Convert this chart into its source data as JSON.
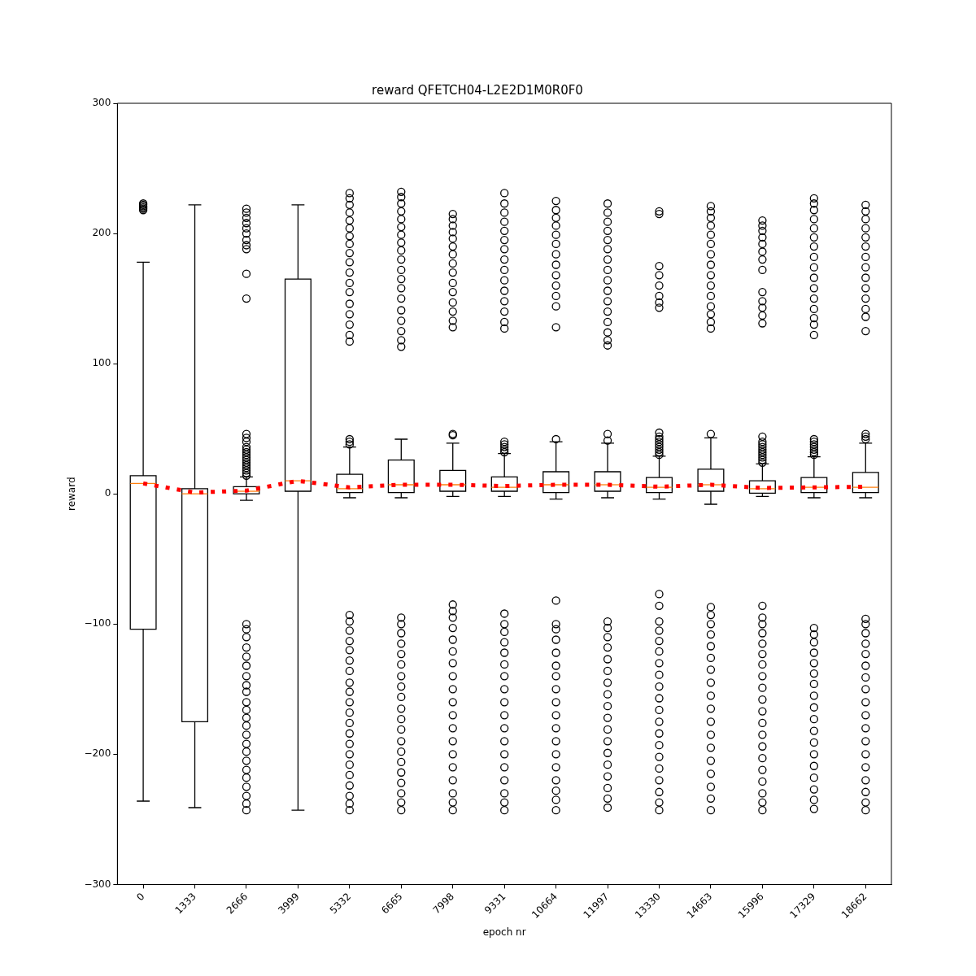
{
  "chart_data": {
    "type": "box",
    "title": "reward QFETCH04-L2E2D1M0R0F0",
    "xlabel": "epoch nr",
    "ylabel": "reward",
    "color": "#000000",
    "categories": [
      "0",
      "1333",
      "2666",
      "3999",
      "5332",
      "6665",
      "7998",
      "9331",
      "10664",
      "11997",
      "13330",
      "14663",
      "15996",
      "17329",
      "18662"
    ],
    "ylim": [
      -300,
      300
    ],
    "yticks": [
      {
        "value": -300,
        "label": "−300"
      },
      {
        "value": -200,
        "label": "−200"
      },
      {
        "value": -100,
        "label": "−100"
      },
      0,
      100,
      200,
      300
    ],
    "grid": false,
    "boxes": [
      {
        "low": -236,
        "q1": -104,
        "median": 8,
        "q3": 14,
        "high": 178,
        "outliers": [
          218,
          219,
          220,
          221,
          222,
          223
        ]
      },
      {
        "low": -241,
        "q1": -175,
        "median": 0,
        "q3": 4,
        "high": 222
      },
      {
        "low": -5,
        "q1": 0,
        "median": 2,
        "q3": 5.5,
        "high": 13,
        "outliers": [
          14,
          16,
          18,
          20,
          22,
          24,
          26,
          28,
          30,
          32,
          34,
          36,
          40,
          43,
          46,
          150,
          169,
          188,
          191,
          195,
          200,
          204,
          208,
          212,
          216,
          219,
          -100,
          -104,
          -110,
          -118,
          -125,
          -132,
          -140,
          -147,
          -152,
          -160,
          -166,
          -172,
          -178,
          -185,
          -192,
          -198,
          -205,
          -212,
          -218,
          -225,
          -232,
          -238,
          -243
        ]
      },
      {
        "low": -243,
        "q1": 2,
        "median": 10,
        "q3": 165,
        "high": 222
      },
      {
        "low": -3,
        "q1": 1,
        "median": 4,
        "q3": 15,
        "high": 36,
        "outliers": [
          38,
          40,
          42,
          117,
          122,
          130,
          138,
          146,
          155,
          162,
          170,
          178,
          185,
          192,
          198,
          204,
          210,
          216,
          222,
          227,
          231,
          -93,
          -98,
          -105,
          -113,
          -120,
          -128,
          -136,
          -145,
          -152,
          -160,
          -168,
          -176,
          -184,
          -192,
          -200,
          -208,
          -216,
          -224,
          -232,
          -238,
          -243
        ]
      },
      {
        "low": -3,
        "q1": 1,
        "median": 7,
        "q3": 26,
        "high": 42,
        "outliers": [
          113,
          118,
          125,
          133,
          141,
          150,
          158,
          165,
          172,
          180,
          187,
          193,
          199,
          205,
          211,
          217,
          223,
          228,
          232,
          -95,
          -100,
          -107,
          -115,
          -123,
          -131,
          -140,
          -148,
          -156,
          -165,
          -173,
          -181,
          -190,
          -198,
          -206,
          -214,
          -222,
          -230,
          -237,
          -243
        ]
      },
      {
        "low": -2,
        "q1": 2,
        "median": 7,
        "q3": 18,
        "high": 39,
        "outliers": [
          45,
          46,
          128,
          133,
          140,
          147,
          155,
          162,
          170,
          177,
          184,
          190,
          196,
          201,
          206,
          211,
          215,
          -85,
          -90,
          -95,
          -103,
          -112,
          -121,
          -130,
          -140,
          -150,
          -160,
          -170,
          -180,
          -190,
          -200,
          -210,
          -220,
          -230,
          -237,
          -243
        ]
      },
      {
        "low": -2,
        "q1": 2,
        "median": 5,
        "q3": 13,
        "high": 31,
        "outliers": [
          32,
          34,
          36,
          38,
          40,
          127,
          132,
          140,
          148,
          156,
          164,
          172,
          180,
          188,
          195,
          202,
          209,
          216,
          223,
          231,
          -92,
          -100,
          -106,
          -114,
          -122,
          -131,
          -140,
          -150,
          -160,
          -170,
          -180,
          -190,
          -200,
          -210,
          -220,
          -230,
          -237,
          -243
        ]
      },
      {
        "low": -4,
        "q1": 1,
        "median": 7,
        "q3": 17,
        "high": 40,
        "outliers": [
          42,
          128,
          144,
          152,
          160,
          168,
          176,
          184,
          192,
          199,
          206,
          212,
          218,
          225,
          -82,
          -100,
          -104,
          -112,
          -122,
          -132,
          -140,
          -150,
          -160,
          -170,
          -180,
          -190,
          -200,
          -210,
          -220,
          -228,
          -235,
          -243
        ]
      },
      {
        "low": -3,
        "q1": 2,
        "median": 7,
        "q3": 17,
        "high": 39,
        "outliers": [
          41,
          46,
          114,
          118,
          124,
          132,
          140,
          148,
          156,
          164,
          172,
          180,
          188,
          195,
          202,
          209,
          216,
          223,
          -98,
          -103,
          -110,
          -118,
          -127,
          -136,
          -145,
          -154,
          -163,
          -172,
          -181,
          -190,
          -199,
          -208,
          -217,
          -226,
          -234,
          -241
        ]
      },
      {
        "low": -4,
        "q1": 1,
        "median": 5,
        "q3": 12.5,
        "high": 29,
        "outliers": [
          30,
          32,
          34,
          36,
          38,
          40,
          42,
          44,
          47,
          143,
          147,
          152,
          160,
          168,
          175,
          215,
          217,
          -77,
          -86,
          -98,
          -105,
          -113,
          -121,
          -130,
          -139,
          -148,
          -157,
          -166,
          -175,
          -184,
          -193,
          -202,
          -211,
          -220,
          -229,
          -237,
          -243
        ]
      },
      {
        "low": -8,
        "q1": 2,
        "median": 7,
        "q3": 19,
        "high": 43,
        "outliers": [
          46,
          127,
          132,
          138,
          144,
          152,
          160,
          168,
          176,
          184,
          192,
          199,
          206,
          212,
          217,
          221,
          -87,
          -93,
          -100,
          -108,
          -117,
          -126,
          -135,
          -145,
          -155,
          -165,
          -175,
          -185,
          -195,
          -205,
          -215,
          -225,
          -234,
          -243
        ]
      },
      {
        "low": -2,
        "q1": 0.5,
        "median": 4,
        "q3": 10,
        "high": 23,
        "outliers": [
          24,
          26,
          28,
          30,
          32,
          34,
          36,
          38,
          40,
          44,
          131,
          137,
          143,
          148,
          155,
          172,
          180,
          186,
          192,
          197,
          202,
          206,
          210,
          -86,
          -95,
          -100,
          -107,
          -115,
          -123,
          -131,
          -140,
          -149,
          -158,
          -167,
          -176,
          -185,
          -194,
          -203,
          -212,
          -221,
          -230,
          -237,
          -243
        ]
      },
      {
        "low": -3,
        "q1": 1,
        "median": 5,
        "q3": 12.5,
        "high": 28.5,
        "outliers": [
          30,
          32,
          34,
          36,
          38,
          40,
          42,
          122,
          130,
          135,
          142,
          150,
          158,
          166,
          174,
          182,
          190,
          197,
          204,
          211,
          218,
          223,
          227,
          -103,
          -108,
          -114,
          -122,
          -130,
          -138,
          -146,
          -155,
          -164,
          -173,
          -182,
          -191,
          -200,
          -209,
          -218,
          -227,
          -235,
          -242
        ]
      },
      {
        "low": -3,
        "q1": 1,
        "median": 5,
        "q3": 16.5,
        "high": 39,
        "outliers": [
          42,
          44,
          46,
          125,
          136,
          142,
          150,
          158,
          166,
          174,
          182,
          190,
          197,
          204,
          211,
          217,
          222,
          -96,
          -100,
          -107,
          -115,
          -123,
          -132,
          -141,
          -150,
          -160,
          -170,
          -180,
          -190,
          -200,
          -210,
          -220,
          -229,
          -237,
          -243
        ]
      }
    ],
    "series": [
      {
        "type": "line",
        "color": "#ff0000",
        "line_style": "dotted",
        "marker": "none",
        "values": [
          8,
          1,
          2.5,
          10,
          5,
          7,
          7,
          6,
          7,
          7,
          5.5,
          7,
          4.5,
          5,
          5.5
        ]
      }
    ]
  }
}
